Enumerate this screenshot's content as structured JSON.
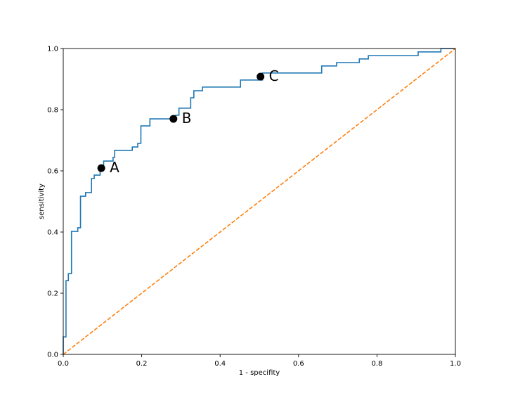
{
  "chart_data": {
    "type": "line",
    "title": "",
    "xlabel": "1 - specifity",
    "ylabel": "sensitivity",
    "xlim": [
      0.0,
      1.0
    ],
    "ylim": [
      0.0,
      1.0
    ],
    "xticks": [
      "0.0",
      "0.2",
      "0.4",
      "0.6",
      "0.8",
      "1.0"
    ],
    "yticks": [
      "0.0",
      "0.2",
      "0.4",
      "0.6",
      "0.8",
      "1.0"
    ],
    "grid": false,
    "series": [
      {
        "style": "step",
        "color": "#1f77b4",
        "points": [
          [
            0.0,
            0.0
          ],
          [
            0.0,
            0.057
          ],
          [
            0.007,
            0.057
          ],
          [
            0.007,
            0.241
          ],
          [
            0.013,
            0.241
          ],
          [
            0.013,
            0.264
          ],
          [
            0.021,
            0.264
          ],
          [
            0.021,
            0.402
          ],
          [
            0.037,
            0.402
          ],
          [
            0.037,
            0.414
          ],
          [
            0.044,
            0.414
          ],
          [
            0.044,
            0.517
          ],
          [
            0.057,
            0.517
          ],
          [
            0.057,
            0.529
          ],
          [
            0.072,
            0.529
          ],
          [
            0.072,
            0.575
          ],
          [
            0.079,
            0.575
          ],
          [
            0.079,
            0.586
          ],
          [
            0.094,
            0.586
          ],
          [
            0.094,
            0.609
          ],
          [
            0.103,
            0.609
          ],
          [
            0.103,
            0.632
          ],
          [
            0.127,
            0.632
          ],
          [
            0.127,
            0.644
          ],
          [
            0.131,
            0.644
          ],
          [
            0.131,
            0.667
          ],
          [
            0.176,
            0.667
          ],
          [
            0.176,
            0.678
          ],
          [
            0.19,
            0.678
          ],
          [
            0.19,
            0.69
          ],
          [
            0.198,
            0.69
          ],
          [
            0.198,
            0.747
          ],
          [
            0.221,
            0.747
          ],
          [
            0.221,
            0.77
          ],
          [
            0.287,
            0.77
          ],
          [
            0.287,
            0.782
          ],
          [
            0.295,
            0.782
          ],
          [
            0.295,
            0.805
          ],
          [
            0.325,
            0.805
          ],
          [
            0.325,
            0.839
          ],
          [
            0.333,
            0.839
          ],
          [
            0.333,
            0.862
          ],
          [
            0.355,
            0.862
          ],
          [
            0.355,
            0.874
          ],
          [
            0.452,
            0.874
          ],
          [
            0.452,
            0.897
          ],
          [
            0.508,
            0.897
          ],
          [
            0.508,
            0.92
          ],
          [
            0.659,
            0.92
          ],
          [
            0.659,
            0.943
          ],
          [
            0.697,
            0.943
          ],
          [
            0.697,
            0.954
          ],
          [
            0.755,
            0.954
          ],
          [
            0.755,
            0.966
          ],
          [
            0.778,
            0.966
          ],
          [
            0.778,
            0.977
          ],
          [
            0.905,
            0.977
          ],
          [
            0.905,
            0.989
          ],
          [
            0.963,
            0.989
          ],
          [
            0.963,
            1.0
          ],
          [
            1.0,
            1.0
          ]
        ]
      },
      {
        "style": "dashed",
        "color": "#ff7f0e",
        "points": [
          [
            0.0,
            0.0
          ],
          [
            1.0,
            1.0
          ]
        ]
      }
    ],
    "highlighted_points": [
      {
        "label": "A",
        "x": 0.097,
        "y": 0.609
      },
      {
        "label": "B",
        "x": 0.281,
        "y": 0.77
      },
      {
        "label": "C",
        "x": 0.503,
        "y": 0.908
      }
    ]
  }
}
